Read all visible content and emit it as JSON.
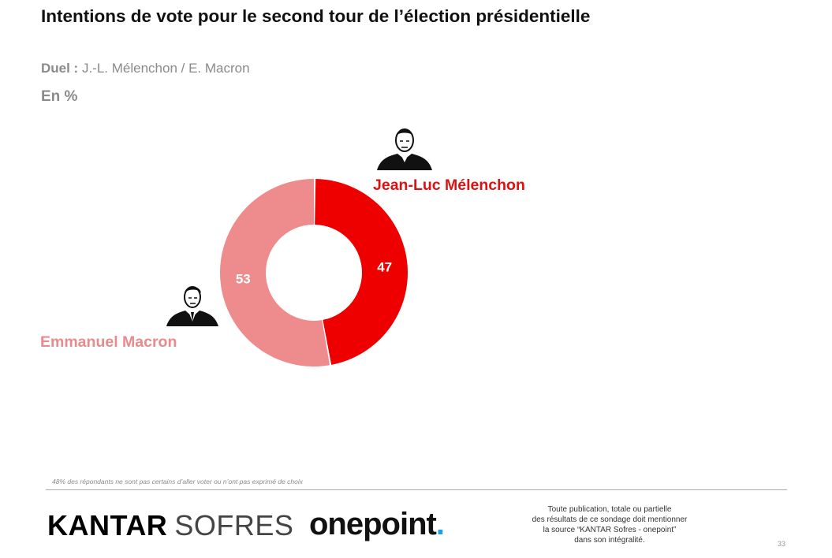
{
  "title": "Intentions de vote pour le second tour de l’élection présidentielle",
  "subtitle": {
    "label": "Duel :",
    "text": " J.-L. Mélenchon / E. Macron"
  },
  "unit": "En %",
  "chart_data": {
    "type": "pie",
    "donut": true,
    "slices": [
      {
        "name": "Jean-Luc Mélenchon",
        "value": 47,
        "color": "#ee0000",
        "label_color": "#dd1111"
      },
      {
        "name": "Emmanuel Macron",
        "value": 53,
        "color": "#ee8b8d",
        "label_color": "#e98a8c"
      }
    ],
    "data_label_color": "#ffffff"
  },
  "footnote": "48% des répondants ne sont pas certains d’aller voter ou n’ont pas exprimé de choix",
  "logos": {
    "kantar_1": "KANTAR",
    "kantar_2": "SOFRES",
    "onepoint": "onepoint",
    "onepoint_dot": "."
  },
  "legal": [
    "Toute publication, totale ou partielle",
    "des résultats de ce sondage doit mentionner",
    "la source “KANTAR Sofres - onepoint”",
    "dans son intégralité."
  ],
  "page_number": "33",
  "icons": {
    "melenchon_portrait": "person-portrait-icon",
    "macron_portrait": "person-portrait-icon"
  }
}
